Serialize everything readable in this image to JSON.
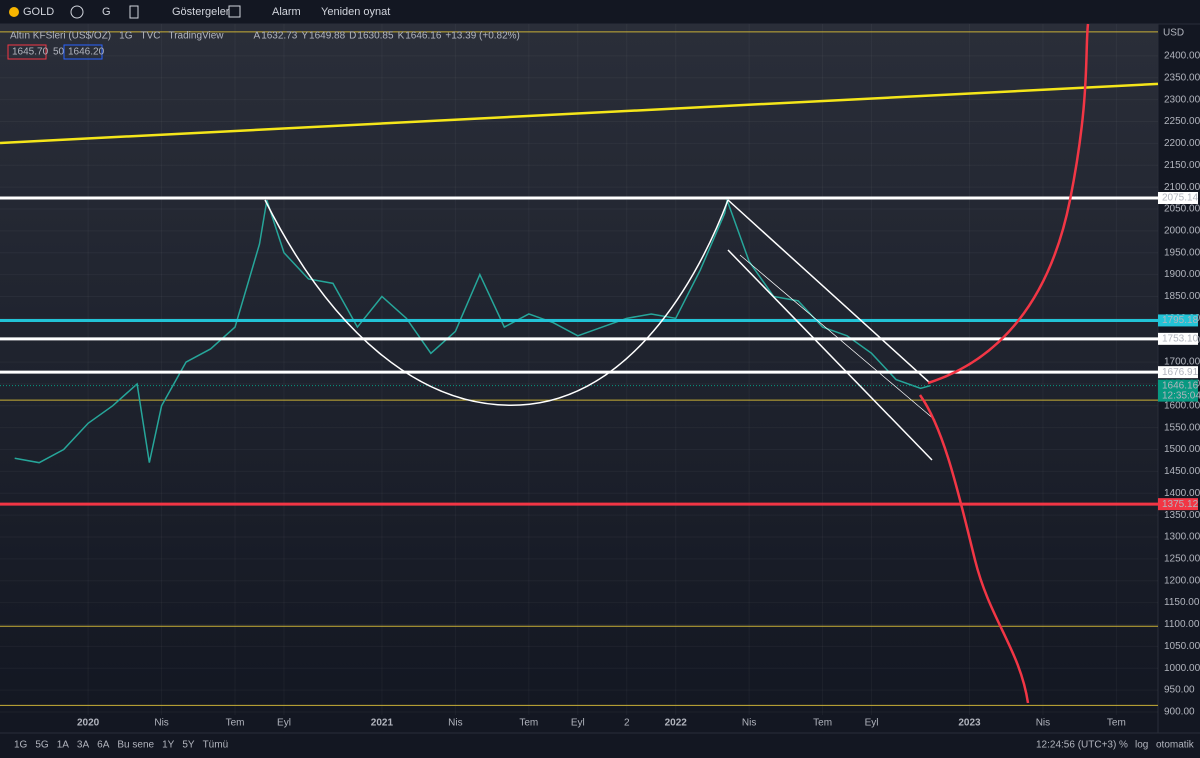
{
  "toolbar": {
    "symbol": "GOLD",
    "interval": "G",
    "indicators": "Göstergeler",
    "alarm": "Alarm",
    "replay": "Yeniden oynat"
  },
  "legend": {
    "name": "Altın KFSleri (US$/OZ)",
    "interval": "1G",
    "exchange": "TVC",
    "source": "TradingView",
    "ohlc": [
      {
        "key": "A",
        "value": "1632.73"
      },
      {
        "key": "Y",
        "value": "1649.88"
      },
      {
        "key": "D",
        "value": "1630.85"
      },
      {
        "key": "K",
        "value": "1646.16"
      }
    ],
    "change": "+13.39 (+0.82%)",
    "bid": "1645.70",
    "spread": "50",
    "ask": "1646.20"
  },
  "chart_data": {
    "type": "line",
    "currency": "USD",
    "x": [
      -3,
      -2,
      -1,
      0,
      1,
      2,
      2.5,
      3,
      4,
      5,
      6,
      7,
      7.3,
      8,
      9,
      10,
      11,
      12,
      13,
      14,
      15,
      16,
      17,
      18,
      19,
      20,
      21,
      22,
      23,
      24,
      25,
      26,
      26.1,
      27,
      28,
      29,
      30,
      31,
      32,
      33,
      34,
      34.4
    ],
    "values": [
      1480,
      1470,
      1500,
      1560,
      1600,
      1650,
      1470,
      1600,
      1700,
      1730,
      1780,
      1970,
      2070,
      1950,
      1890,
      1880,
      1780,
      1850,
      1800,
      1720,
      1770,
      1900,
      1780,
      1810,
      1790,
      1760,
      1780,
      1800,
      1810,
      1800,
      1910,
      2040,
      2070,
      1930,
      1850,
      1840,
      1780,
      1760,
      1720,
      1660,
      1640,
      1646
    ],
    "color": "#26a69a",
    "xlim": [
      -3.6,
      43.7
    ],
    "xticks": [
      {
        "value": 0,
        "label": "2020"
      },
      {
        "value": 3,
        "label": "Nis"
      },
      {
        "value": 6,
        "label": "Tem"
      },
      {
        "value": 8,
        "label": "Eyl"
      },
      {
        "value": 12,
        "label": "2021"
      },
      {
        "value": 15,
        "label": "Nis"
      },
      {
        "value": 18,
        "label": "Tem"
      },
      {
        "value": 20,
        "label": "Eyl"
      },
      {
        "value": 22,
        "label": "2"
      },
      {
        "value": 24,
        "label": "2022"
      },
      {
        "value": 27,
        "label": "Nis"
      },
      {
        "value": 30,
        "label": "Tem"
      },
      {
        "value": 32,
        "label": "Eyl"
      },
      {
        "value": 36,
        "label": "2023"
      },
      {
        "value": 39,
        "label": "Nis"
      },
      {
        "value": 42,
        "label": "Tem"
      }
    ],
    "ylim": [
      893,
      2473
    ],
    "yticks": [
      {
        "value": 2400,
        "label": "2400.00"
      },
      {
        "value": 2350,
        "label": "2350.00"
      },
      {
        "value": 2300,
        "label": "2300.00"
      },
      {
        "value": 2250,
        "label": "2250.00"
      },
      {
        "value": 2200,
        "label": "2200.00"
      },
      {
        "value": 2150,
        "label": "2150.00"
      },
      {
        "value": 2100,
        "label": "2100.00"
      },
      {
        "value": 2050,
        "label": "2050.00"
      },
      {
        "value": 2000,
        "label": "2000.00"
      },
      {
        "value": 1950,
        "label": "1950.00"
      },
      {
        "value": 1900,
        "label": "1900.00"
      },
      {
        "value": 1850,
        "label": "1850.00"
      },
      {
        "value": 1800,
        "label": "1800.00"
      },
      {
        "value": 1750,
        "label": "1750.00"
      },
      {
        "value": 1700,
        "label": "1700.00"
      },
      {
        "value": 1650,
        "label": "1650.00"
      },
      {
        "value": 1600,
        "label": "1600.00"
      },
      {
        "value": 1550,
        "label": "1550.00"
      },
      {
        "value": 1500,
        "label": "1500.00"
      },
      {
        "value": 1450,
        "label": "1450.00"
      },
      {
        "value": 1400,
        "label": "1400.00"
      },
      {
        "value": 1350,
        "label": "1350.00"
      },
      {
        "value": 1300,
        "label": "1300.00"
      },
      {
        "value": 1250,
        "label": "1250.00"
      },
      {
        "value": 1200,
        "label": "1200.00"
      },
      {
        "value": 1150,
        "label": "1150.00"
      },
      {
        "value": 1100,
        "label": "1100.00"
      },
      {
        "value": 1050,
        "label": "1050.00"
      },
      {
        "value": 1000,
        "label": "1000.00"
      },
      {
        "value": 950,
        "label": "950.00"
      },
      {
        "value": 900,
        "label": "900.00"
      }
    ],
    "grid": true,
    "levels": [
      {
        "value": 2075.14,
        "label": "2075.14",
        "color": "#ffffff"
      },
      {
        "value": 1795.18,
        "label": "1795.18",
        "color": "#22c3d6"
      },
      {
        "value": 1753.1,
        "label": "1753.10",
        "color": "#ffffff"
      },
      {
        "value": 1676.91,
        "label": "1676.91",
        "color": "#ffffff"
      },
      {
        "value": 1375.12,
        "label": "1375.12",
        "color": "#f23645"
      }
    ],
    "thin_levels": {
      "values": [
        2455,
        1613,
        1096,
        915
      ],
      "color": "#c9b037"
    },
    "trendline": {
      "x": [
        -3.6,
        43.7
      ],
      "values": [
        2201,
        2336
      ],
      "color": "#f5e61a"
    },
    "last": {
      "value": 1646.16,
      "label": "1646.16",
      "countdown": "12:35:04",
      "color": "#089981"
    }
  },
  "bottom_bar": {
    "ranges": [
      "1G",
      "5G",
      "1A",
      "3A",
      "6A",
      "Bu sene",
      "1Y",
      "5Y",
      "Tümü"
    ],
    "clock": "12:24:56 (UTC+3)",
    "percent": "%",
    "log": "log",
    "auto": "otomatik"
  }
}
